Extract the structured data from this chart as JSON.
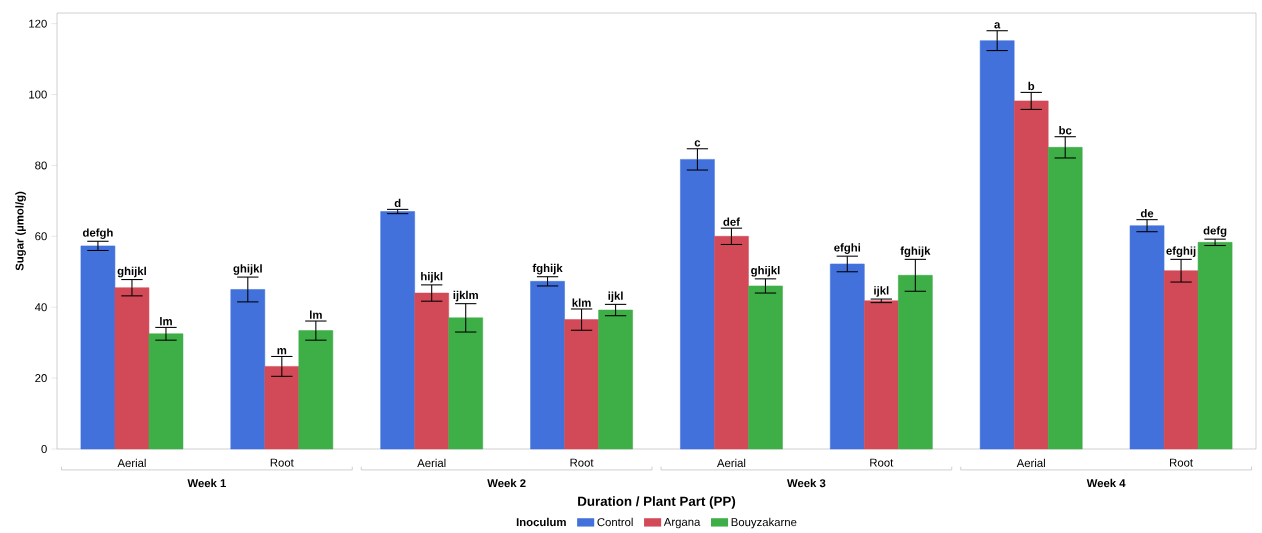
{
  "chart_data": {
    "type": "bar",
    "xlabel": "Duration / Plant Part (PP)",
    "ylabel": "Sugar (µmol/g)",
    "legend_title": "Inoculum",
    "legend": "bottom",
    "categories": [
      "Aerial",
      "Root",
      "Aerial",
      "Root",
      "Aerial",
      "Root",
      "Aerial",
      "Root"
    ],
    "annotations": [
      "Week 1",
      "Week 2",
      "Week 3",
      "Week 4"
    ],
    "ylim": [
      0,
      123
    ],
    "yticks": [
      0,
      20,
      40,
      60,
      80,
      100,
      120
    ],
    "grid": false,
    "series": [
      {
        "name": "Control",
        "color": "#4371db",
        "values": [
          57.3,
          45,
          67,
          47.3,
          81.7,
          52.2,
          115.2,
          63
        ],
        "errors": [
          1.3,
          3.5,
          0.6,
          1.3,
          3,
          2.2,
          2.8,
          1.7
        ],
        "value_labels": [
          "defgh",
          "ghijkl",
          "d",
          "fghijk",
          "c",
          "efghi",
          "a",
          "de"
        ]
      },
      {
        "name": "Argana",
        "color": "#d24a57",
        "values": [
          45.5,
          23.3,
          44,
          36.5,
          60,
          41.8,
          98.2,
          50.3
        ],
        "errors": [
          2.3,
          2.8,
          2.3,
          3,
          2.3,
          0.5,
          2.4,
          3.2
        ],
        "value_labels": [
          "ghijkl",
          "m",
          "hijkl",
          "klm",
          "def",
          "ijkl",
          "b",
          "efghij"
        ]
      },
      {
        "name": "Bouyzakarne",
        "color": "#3eae47",
        "values": [
          32.5,
          33.4,
          37,
          39.2,
          46,
          49,
          85.1,
          58.3
        ],
        "errors": [
          1.8,
          2.7,
          4,
          1.6,
          2,
          4.5,
          3,
          0.9
        ],
        "value_labels": [
          "lm",
          "lm",
          "ijklm",
          "ijkl",
          "ghijkl",
          "fghijk",
          "bc",
          "defg"
        ]
      }
    ]
  }
}
